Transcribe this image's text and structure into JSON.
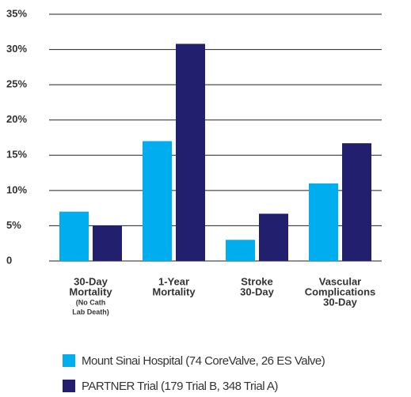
{
  "chart_data": {
    "type": "bar",
    "categories": [
      [
        "30-Day",
        "Mortality"
      ],
      [
        "1-Year",
        "Mortality"
      ],
      [
        "Stroke",
        "30-Day"
      ],
      [
        "Vascular",
        "Complications",
        "30-Day"
      ]
    ],
    "category_notes": [
      [
        "(No Cath",
        "Lab Death)"
      ],
      [],
      [],
      []
    ],
    "series": [
      {
        "name": "Mount Sinai Hospital (74 CoreValve, 26 ES Valve)",
        "color": "#00aeef",
        "values": [
          7,
          17,
          3,
          11
        ]
      },
      {
        "name": "PARTNER Trial (179 Trial B, 348 Trial A)",
        "color": "#221f6e",
        "values": [
          5,
          30.8,
          6.7,
          16.7
        ]
      }
    ],
    "ylim": [
      0,
      35
    ],
    "yticks": [
      0,
      {
        "value": 5,
        "label": "5%"
      },
      {
        "value": 10,
        "label": "10%"
      },
      {
        "value": 15,
        "label": "15%"
      },
      {
        "value": 20,
        "label": "20%"
      },
      {
        "value": 25,
        "label": "25%"
      },
      {
        "value": 30,
        "label": "30%"
      },
      {
        "value": 35,
        "label": "35%"
      }
    ],
    "grid": true,
    "legend": "bottom"
  }
}
